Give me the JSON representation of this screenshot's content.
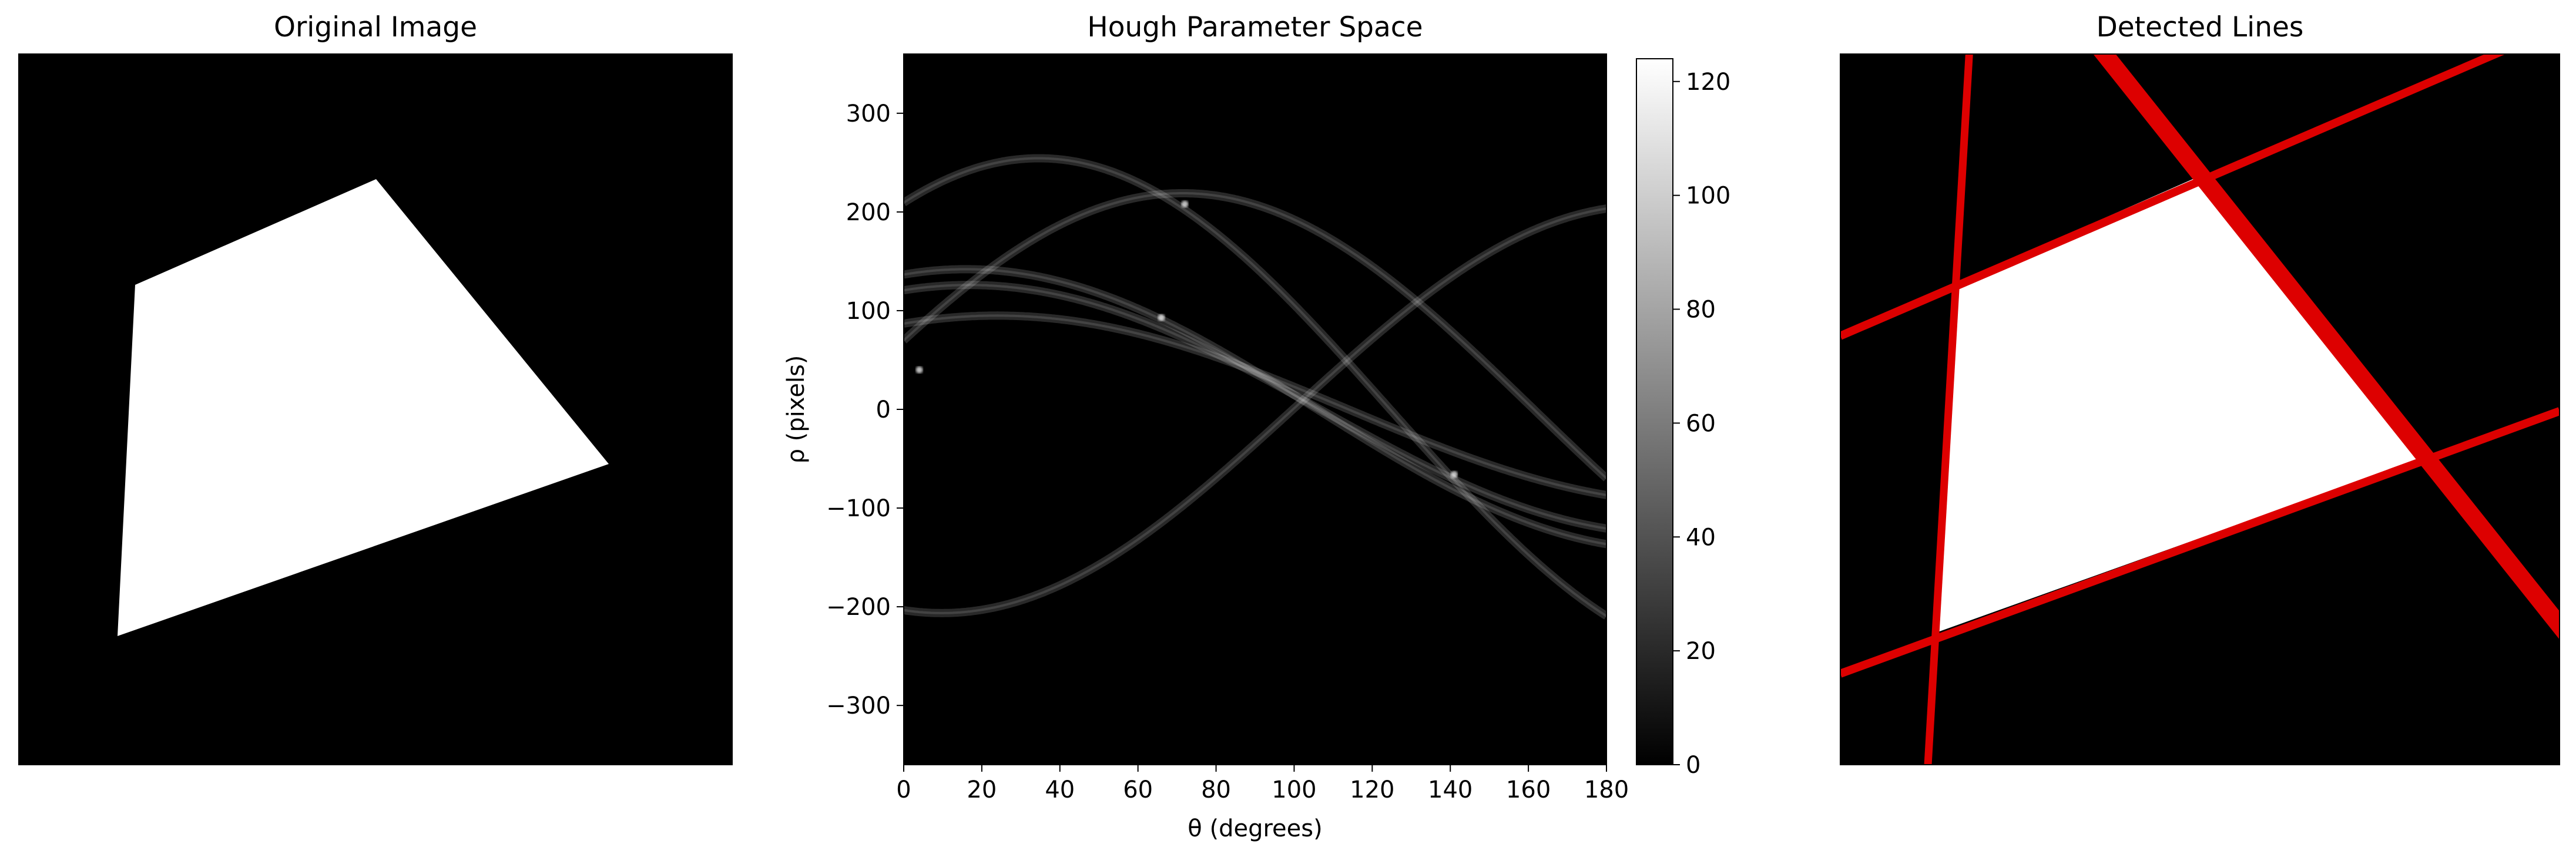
{
  "chart_data": [
    {
      "type": "image",
      "title": "Original Image",
      "image": {
        "background": "#000000",
        "shape_color": "#ffffff",
        "shape": "filled quadrilateral"
      }
    },
    {
      "type": "heatmap",
      "title": "Hough Parameter Space",
      "xlabel": "θ (degrees)",
      "ylabel": "ρ (pixels)",
      "xlim": [
        0,
        180
      ],
      "ylim": [
        -360,
        360
      ],
      "xticks": [
        "0",
        "20",
        "40",
        "60",
        "80",
        "100",
        "120",
        "140",
        "160",
        "180"
      ],
      "yticks": [
        "300",
        "200",
        "100",
        "0",
        "−100",
        "−200",
        "−300"
      ],
      "colormap": "gray",
      "colorbar": {
        "vmin": 0,
        "vmax": 124,
        "ticks": [
          "0",
          "20",
          "40",
          "60",
          "80",
          "100",
          "120"
        ]
      },
      "sinusoids": [
        {
          "A": 206.4,
          "phi_deg": 260.3
        },
        {
          "A": 126.0,
          "phi_deg": 73.3
        },
        {
          "A": 219.0,
          "phi_deg": 18.6
        },
        {
          "A": 142.0,
          "phi_deg": 74.1
        },
        {
          "A": 95.0,
          "phi_deg": 66.1
        },
        {
          "A": 254.4,
          "phi_deg": 55.4
        }
      ],
      "peaks": [
        {
          "theta": 72,
          "rho": 208
        },
        {
          "theta": 66,
          "rho": 93
        },
        {
          "theta": 141,
          "rho": -66
        },
        {
          "theta": 4,
          "rho": 40
        }
      ]
    },
    {
      "type": "image",
      "title": "Detected Lines",
      "line_color": "#e00000",
      "lines_detected": 4
    }
  ]
}
